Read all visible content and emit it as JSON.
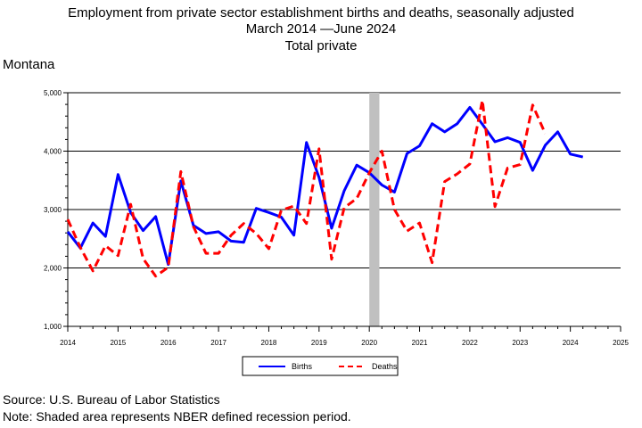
{
  "title": {
    "line1": "Employment from private sector establishment births and deaths, seasonally adjusted",
    "line2": "March 2014 —June 2024",
    "line3": "Total private"
  },
  "region_label": "Montana",
  "footer": {
    "source": "Source: U.S. Bureau of Labor Statistics",
    "note": "Note: Shaded area represents NBER defined recession period."
  },
  "colors": {
    "births": "#0000ff",
    "deaths": "#ff0000",
    "recession": "#c0c0c0"
  },
  "chart_data": {
    "type": "line",
    "title": "Employment from private sector establishment births and deaths, seasonally adjusted",
    "subtitle": "March 2014 —June 2024 / Total private",
    "ylabel": "Montana",
    "xlabel": "",
    "xlim": [
      2014,
      2025
    ],
    "ylim": [
      1000,
      5000
    ],
    "x_ticks": [
      "2014",
      "2015",
      "2016",
      "2017",
      "2018",
      "2019",
      "2020",
      "2021",
      "2022",
      "2023",
      "2024",
      "2025"
    ],
    "y_ticks": [
      "1,000",
      "2,000",
      "3,000",
      "4,000",
      "5,000"
    ],
    "grid": "horizontal",
    "legend": "bottom-center",
    "recession_shading": [
      2020.0,
      2020.2
    ],
    "series": [
      {
        "name": "Births",
        "x": [
          2014.0,
          2014.25,
          2014.5,
          2014.75,
          2015.0,
          2015.25,
          2015.5,
          2015.75,
          2016.0,
          2016.25,
          2016.5,
          2016.75,
          2017.0,
          2017.25,
          2017.5,
          2017.75,
          2018.0,
          2018.25,
          2018.5,
          2018.75,
          2019.0,
          2019.25,
          2019.5,
          2019.75,
          2020.0,
          2020.25,
          2020.5,
          2020.75,
          2021.0,
          2021.25,
          2021.5,
          2021.75,
          2022.0,
          2022.25,
          2022.5,
          2022.75,
          2023.0,
          2023.25,
          2023.5,
          2023.75,
          2024.0,
          2024.25
        ],
        "values": [
          2620,
          2340,
          2770,
          2540,
          3600,
          2950,
          2640,
          2880,
          2060,
          3490,
          2730,
          2590,
          2620,
          2460,
          2440,
          3020,
          2950,
          2870,
          2560,
          4150,
          3550,
          2680,
          3320,
          3760,
          3630,
          3420,
          3300,
          3960,
          4090,
          4470,
          4330,
          4470,
          4750,
          4460,
          4160,
          4230,
          4150,
          3670,
          4100,
          4330,
          3950,
          3900
        ]
      },
      {
        "name": "Deaths",
        "x": [
          2014.0,
          2014.25,
          2014.5,
          2014.75,
          2015.0,
          2015.25,
          2015.5,
          2015.75,
          2016.0,
          2016.25,
          2016.5,
          2016.75,
          2017.0,
          2017.25,
          2017.5,
          2017.75,
          2018.0,
          2018.25,
          2018.5,
          2018.75,
          2019.0,
          2019.25,
          2019.5,
          2019.75,
          2020.0,
          2020.25,
          2020.5,
          2020.75,
          2021.0,
          2021.25,
          2021.5,
          2021.75,
          2022.0,
          2022.25,
          2022.5,
          2022.75,
          2023.0,
          2023.25,
          2023.5
        ],
        "values": [
          2830,
          2350,
          1950,
          2380,
          2210,
          3090,
          2160,
          1860,
          2010,
          3650,
          2710,
          2250,
          2250,
          2560,
          2760,
          2590,
          2330,
          2990,
          3060,
          2760,
          4040,
          2150,
          3030,
          3190,
          3630,
          4000,
          3000,
          2630,
          2770,
          2090,
          3480,
          3610,
          3780,
          4870,
          3050,
          3710,
          3770,
          4790,
          4300
        ]
      }
    ]
  }
}
